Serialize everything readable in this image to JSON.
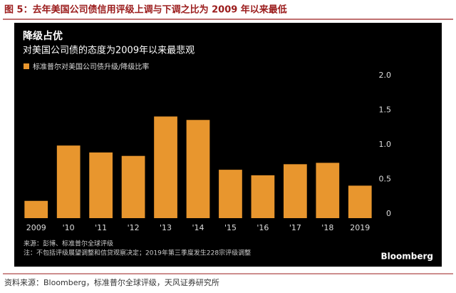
{
  "figure_title": "图 5：去年美国公司债信用评级上调与下调之比为 2009 年以来最低",
  "source": "资料来源：Bloomberg，标准普尔全球评级，天风证券研究所",
  "chart_data": {
    "type": "bar",
    "title": "降级占优",
    "subtitle": "对美国公司债的态度为2009年以来最悲观",
    "categories": [
      "2009",
      "'10",
      "'11",
      "'12",
      "'13",
      "'14",
      "'15",
      "'16",
      "'17",
      "'18",
      "2019"
    ],
    "series": [
      {
        "name": "标准普尔对美国公司债升级/降级比率",
        "color": "#e8962e",
        "values": [
          0.25,
          1.05,
          0.95,
          0.9,
          1.47,
          1.42,
          0.7,
          0.62,
          0.78,
          0.8,
          0.47
        ]
      }
    ],
    "ylim": [
      0,
      2
    ],
    "yticks": [
      0,
      0.5,
      {
        "value": 1,
        "label": "1.0"
      },
      1.5,
      {
        "value": 2,
        "label": "2.0"
      }
    ],
    "notes": [
      "来源：彭博、标准普尔全球评级",
      "注：不包括评级展望调整和信贷观察决定；2019年第三季度发生228宗评级调整"
    ],
    "brand": "Bloomberg"
  }
}
